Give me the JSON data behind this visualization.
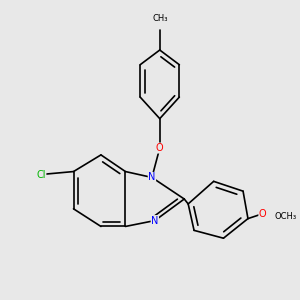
{
  "background_color": "#e8e8e8",
  "bond_color": "#000000",
  "bond_width": 1.2,
  "atom_colors": {
    "N": "#0000ff",
    "O": "#ff0000",
    "Cl": "#00b400",
    "C": "#000000"
  },
  "figsize": [
    3.0,
    3.0
  ],
  "dpi": 100,
  "xlim": [
    0,
    300
  ],
  "ylim": [
    0,
    300
  ]
}
